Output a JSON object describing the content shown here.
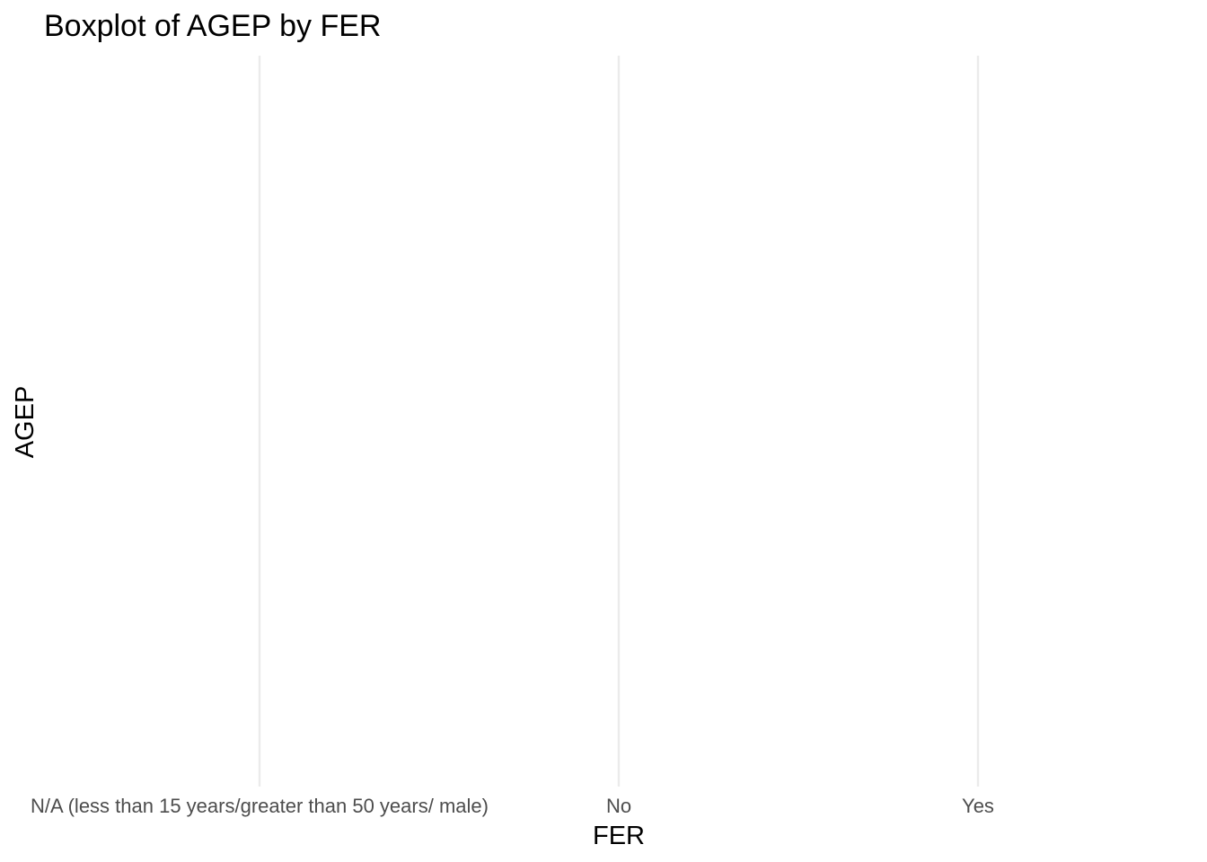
{
  "chart_data": {
    "type": "boxplot",
    "title": "Boxplot of AGEP by FER",
    "xlabel": "FER",
    "ylabel": "AGEP",
    "categories": [
      "N/A (less than 15 years/greater than 50 years/ male)",
      "No",
      "Yes"
    ],
    "series": [],
    "grid": "vertical major gridlines only",
    "colors": {
      "grid": "#ebebeb",
      "tick_text": "#4d4d4d",
      "title_text": "#000000"
    }
  }
}
